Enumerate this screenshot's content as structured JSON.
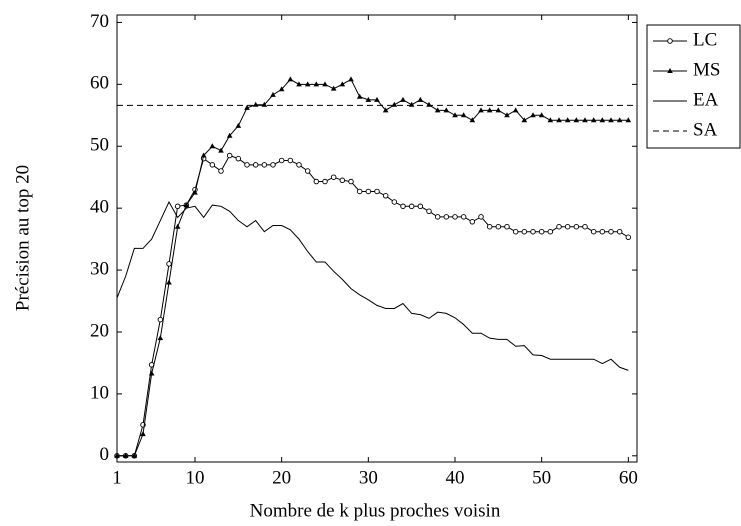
{
  "chart_data": {
    "type": "line",
    "x_label": "Nombre de k plus proches voisin",
    "y_label": "Précision au top 20",
    "x": [
      1,
      2,
      3,
      4,
      5,
      6,
      7,
      8,
      9,
      10,
      11,
      12,
      13,
      14,
      15,
      16,
      17,
      18,
      19,
      20,
      21,
      22,
      23,
      24,
      25,
      26,
      27,
      28,
      29,
      30,
      31,
      32,
      33,
      34,
      35,
      36,
      37,
      38,
      39,
      40,
      41,
      42,
      43,
      44,
      45,
      46,
      47,
      48,
      49,
      50,
      51,
      52,
      53,
      54,
      55,
      56,
      57,
      58,
      59,
      60
    ],
    "xlim": [
      1,
      61
    ],
    "xticks": [
      1,
      10,
      20,
      30,
      40,
      50,
      60
    ],
    "ylim": [
      -1,
      71.2
    ],
    "yticks": [
      0,
      10,
      20,
      30,
      40,
      50,
      60,
      70
    ],
    "legend_position": "outside-upper-right",
    "series": [
      {
        "name": "LC",
        "color": "#000000",
        "style": "solid",
        "marker": "circle",
        "values": [
          0,
          0,
          0,
          5,
          14.7,
          22,
          31,
          40.3,
          40.5,
          43,
          48,
          47,
          46,
          48.5,
          48,
          47,
          47,
          47,
          47,
          47.7,
          47.7,
          47,
          46,
          44.3,
          44.3,
          45,
          44.5,
          44.3,
          42.7,
          42.7,
          42.7,
          42,
          41,
          40.3,
          40.3,
          40.3,
          39.5,
          38.6,
          38.6,
          38.6,
          38.6,
          37.8,
          38.6,
          37,
          37,
          37,
          36.2,
          36.2,
          36.2,
          36.2,
          36.2,
          37,
          37,
          37,
          37,
          36.2,
          36.2,
          36.2,
          36.2,
          35.3
        ]
      },
      {
        "name": "MS",
        "color": "#000000",
        "style": "solid",
        "marker": "triangle",
        "values": [
          0,
          0,
          0,
          3.5,
          13.3,
          19,
          28,
          37,
          40.5,
          42.5,
          48.5,
          50,
          49.3,
          51.7,
          53.3,
          56.2,
          56.7,
          56.7,
          58.3,
          59.2,
          60.8,
          60,
          60,
          60,
          60,
          59.3,
          60,
          60.8,
          58,
          57.5,
          57.5,
          55.8,
          56.7,
          57.5,
          56.7,
          57.5,
          56.7,
          55.8,
          55.8,
          55,
          55,
          54.2,
          55.8,
          55.8,
          55.8,
          55,
          55.8,
          54.2,
          55,
          55,
          54.2,
          54.2,
          54.2,
          54.2,
          54.2,
          54.2,
          54.2,
          54.2,
          54.2,
          54.2
        ]
      },
      {
        "name": "EA",
        "color": "#000000",
        "style": "solid",
        "marker": "none",
        "values": [
          25.5,
          29,
          33.5,
          33.5,
          35,
          38,
          41,
          38.5,
          40,
          40.3,
          38.5,
          40.5,
          40.3,
          39.5,
          38,
          37,
          38,
          36.2,
          37.2,
          37.2,
          36.5,
          35,
          33,
          31.3,
          31.3,
          29.8,
          28.5,
          27,
          26,
          25.2,
          24.3,
          23.8,
          23.8,
          24.6,
          23,
          22.8,
          22.2,
          23.2,
          23,
          22.3,
          21.2,
          19.8,
          19.8,
          19,
          18.8,
          18.8,
          17.7,
          17.8,
          16.3,
          16.2,
          15.6,
          15.6,
          15.6,
          15.6,
          15.6,
          15.6,
          14.9,
          15.6,
          14.3,
          13.8
        ]
      },
      {
        "name": "SA",
        "color": "#000000",
        "style": "dashed",
        "marker": "none",
        "x": [
          1,
          61
        ],
        "values": [
          56.6,
          56.6
        ]
      }
    ]
  }
}
